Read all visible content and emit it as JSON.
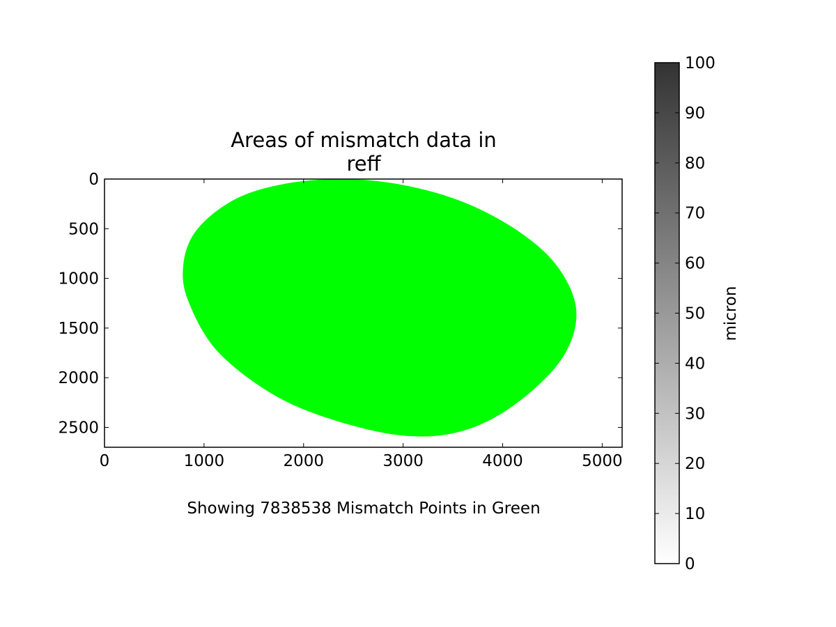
{
  "chart_data": {
    "type": "heatmap",
    "title_line1": "Areas of mismatch data in",
    "title_line2": "reff",
    "xlabel": "Showing 7838538 Mismatch Points in Green",
    "ylabel": "",
    "xlim": [
      0,
      5200
    ],
    "ylim": [
      2700,
      0
    ],
    "x_ticks": [
      0,
      1000,
      2000,
      3000,
      4000,
      5000
    ],
    "x_tick_labels": [
      "0",
      "1000",
      "2000",
      "3000",
      "4000",
      "5000"
    ],
    "y_ticks": [
      0,
      500,
      1000,
      1500,
      2000,
      2500
    ],
    "y_tick_labels": [
      "0",
      "500",
      "1000",
      "1500",
      "2000",
      "2500"
    ],
    "grid": false,
    "mismatch_color": "#00ff00",
    "mismatch_point_count": 7838538,
    "mismatch_region_outline": [
      [
        2400,
        0
      ],
      [
        3000,
        60
      ],
      [
        3600,
        230
      ],
      [
        4150,
        520
      ],
      [
        4550,
        880
      ],
      [
        4740,
        1330
      ],
      [
        4600,
        1800
      ],
      [
        4150,
        2250
      ],
      [
        3650,
        2520
      ],
      [
        3100,
        2590
      ],
      [
        2450,
        2470
      ],
      [
        1750,
        2200
      ],
      [
        1150,
        1750
      ],
      [
        850,
        1250
      ],
      [
        790,
        880
      ],
      [
        920,
        520
      ],
      [
        1300,
        210
      ],
      [
        1800,
        50
      ]
    ],
    "colorbar": {
      "label": "micron",
      "range": [
        0,
        100
      ],
      "ticks": [
        0,
        10,
        20,
        30,
        40,
        50,
        60,
        70,
        80,
        90,
        100
      ],
      "tick_labels": [
        "0",
        "10",
        "20",
        "30",
        "40",
        "50",
        "60",
        "70",
        "80",
        "90",
        "100"
      ],
      "colormap_low": "#ffffff",
      "colormap_high": "#333333"
    }
  }
}
